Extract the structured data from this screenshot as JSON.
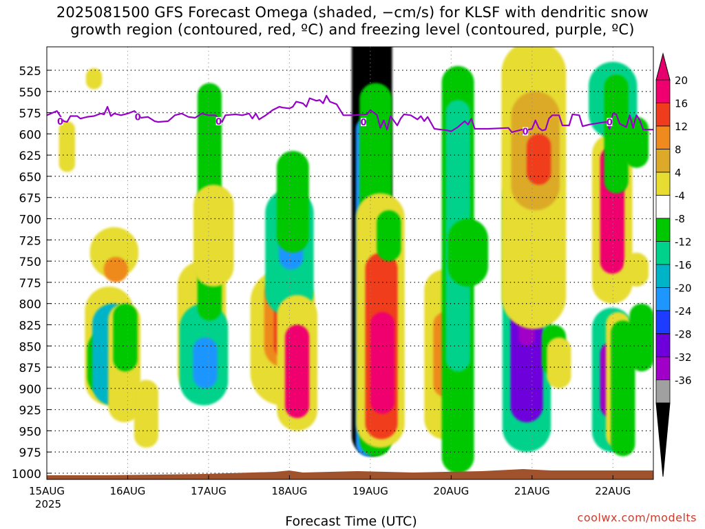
{
  "title_line1": "2025081500 GFS Forecast Omega (shaded, −cm/s) for KLSF with dendritic snow",
  "title_line2": "growth region (contoured, red, ºC) and freezing level (contoured, purple, ºC)",
  "credit": "coolwx.com/modelts",
  "chart_data": {
    "type": "heatmap",
    "title": "2025081500 GFS Forecast Omega (shaded, −cm/s) for KLSF with dendritic snow growth region (contoured, red, ºC) and freezing level (contoured, purple, ºC)",
    "xlabel": "Forecast Time (UTC)",
    "ylabel": "",
    "x_range": [
      "2025-08-15T00",
      "2025-08-22T12"
    ],
    "y_range": [
      1010,
      505
    ],
    "x_ticks": [
      {
        "hour": 0,
        "label": "15AUG",
        "sub": "2025"
      },
      {
        "hour": 24,
        "label": "16AUG"
      },
      {
        "hour": 48,
        "label": "17AUG"
      },
      {
        "hour": 72,
        "label": "18AUG"
      },
      {
        "hour": 96,
        "label": "19AUG"
      },
      {
        "hour": 120,
        "label": "20AUG"
      },
      {
        "hour": 144,
        "label": "21AUG"
      },
      {
        "hour": 168,
        "label": "22AUG"
      }
    ],
    "y_ticks": [
      525,
      550,
      575,
      600,
      625,
      650,
      675,
      700,
      725,
      750,
      775,
      800,
      825,
      850,
      875,
      900,
      925,
      950,
      975,
      1000
    ],
    "grid": true,
    "colorbar": {
      "labels": [
        "20",
        "16",
        "12",
        "8",
        "4",
        "-4",
        "-8",
        "-12",
        "-16",
        "-20",
        "-24",
        "-28",
        "-32",
        "-36"
      ],
      "colors": [
        "#f0006e",
        "#f03c1e",
        "#ee8a1e",
        "#dcaa28",
        "#e6dc32",
        "#ffffff",
        "#00c800",
        "#00d28c",
        "#00b4c8",
        "#1e96ff",
        "#1e3cff",
        "#6e00dc",
        "#a000c8",
        "#a0a0a0"
      ],
      "top_color": "#e6006e",
      "bottom_color": "#000000"
    },
    "freezing_level": {
      "label": "0",
      "color": "#9600c8",
      "points": [
        [
          0,
          578
        ],
        [
          3,
          573
        ],
        [
          5,
          585
        ],
        [
          6,
          586
        ],
        [
          7,
          579
        ],
        [
          9,
          579
        ],
        [
          10,
          582
        ],
        [
          12,
          580
        ],
        [
          14,
          579
        ],
        [
          16,
          576
        ],
        [
          17,
          577
        ],
        [
          18,
          568
        ],
        [
          19,
          579
        ],
        [
          20,
          576
        ],
        [
          22,
          578
        ],
        [
          24,
          576
        ],
        [
          26,
          573
        ],
        [
          28,
          581
        ],
        [
          30,
          580
        ],
        [
          32,
          585
        ],
        [
          33,
          586
        ],
        [
          36,
          585
        ],
        [
          38,
          578
        ],
        [
          40,
          576
        ],
        [
          42,
          580
        ],
        [
          44,
          581
        ],
        [
          46,
          576
        ],
        [
          48,
          578
        ],
        [
          50,
          578
        ],
        [
          52,
          586
        ],
        [
          53,
          578
        ],
        [
          56,
          577
        ],
        [
          58,
          578
        ],
        [
          60,
          576
        ],
        [
          61,
          582
        ],
        [
          62,
          576
        ],
        [
          63,
          583
        ],
        [
          65,
          578
        ],
        [
          67,
          572
        ],
        [
          69,
          568
        ],
        [
          70,
          569
        ],
        [
          72,
          570
        ],
        [
          73,
          568
        ],
        [
          74,
          562
        ],
        [
          76,
          564
        ],
        [
          77,
          568
        ],
        [
          78,
          558
        ],
        [
          80,
          561
        ],
        [
          81,
          560
        ],
        [
          82,
          564
        ],
        [
          83,
          555
        ],
        [
          84,
          562
        ],
        [
          86,
          565
        ],
        [
          88,
          578
        ],
        [
          91,
          578
        ],
        [
          95,
          577
        ],
        [
          96,
          572
        ],
        [
          98,
          578
        ],
        [
          99,
          593
        ],
        [
          100,
          584
        ],
        [
          101,
          595
        ],
        [
          102,
          579
        ],
        [
          104,
          590
        ],
        [
          105,
          582
        ],
        [
          106,
          577
        ],
        [
          108,
          578
        ],
        [
          110,
          583
        ],
        [
          111,
          579
        ],
        [
          112,
          585
        ],
        [
          113,
          580
        ],
        [
          115,
          594
        ],
        [
          117,
          595
        ],
        [
          119,
          596
        ],
        [
          120,
          597
        ],
        [
          122,
          592
        ],
        [
          124,
          585
        ],
        [
          125,
          589
        ],
        [
          126,
          582
        ],
        [
          127,
          594
        ],
        [
          131,
          594
        ],
        [
          137,
          593
        ],
        [
          138,
          598
        ],
        [
          139,
          597
        ],
        [
          142,
          594
        ],
        [
          143,
          595
        ],
        [
          144,
          594
        ],
        [
          145,
          584
        ],
        [
          146,
          593
        ],
        [
          147,
          596
        ],
        [
          148,
          595
        ],
        [
          149,
          582
        ],
        [
          150,
          578
        ],
        [
          152,
          578
        ],
        [
          153,
          590
        ],
        [
          155,
          590
        ],
        [
          156,
          577
        ],
        [
          158,
          578
        ],
        [
          159,
          591
        ],
        [
          160,
          590
        ],
        [
          161,
          589
        ],
        [
          164,
          587
        ],
        [
          166,
          586
        ],
        [
          167,
          594
        ],
        [
          168,
          576
        ],
        [
          169,
          577
        ],
        [
          170,
          588
        ],
        [
          171,
          590
        ],
        [
          172,
          592
        ],
        [
          173,
          578
        ],
        [
          174,
          593
        ],
        [
          175,
          578
        ],
        [
          176,
          584
        ],
        [
          177,
          595
        ],
        [
          180,
          595
        ]
      ]
    },
    "omega_cells": [
      {
        "hour": 18.5,
        "p": 850,
        "dh": 0.6,
        "dp": 140,
        "c": "#e6dc32"
      },
      {
        "hour": 18,
        "p": 870,
        "dh": 0.5,
        "dp": 80,
        "c": "#00c800"
      },
      {
        "hour": 18,
        "p": 880,
        "dh": 0.3,
        "dp": 50,
        "c": "#1e3cff"
      },
      {
        "hour": 19.5,
        "p": 860,
        "dh": 0.5,
        "dp": 120,
        "c": "#00b4c8"
      },
      {
        "hour": 20,
        "p": 740,
        "dh": 0.6,
        "dp": 60,
        "c": "#e6dc32"
      },
      {
        "hour": 20.5,
        "p": 760,
        "dh": 0.3,
        "dp": 30,
        "c": "#ee8a1e"
      },
      {
        "hour": 23,
        "p": 870,
        "dh": 0.4,
        "dp": 140,
        "c": "#e6dc32"
      },
      {
        "hour": 23.3,
        "p": 840,
        "dh": 0.3,
        "dp": 80,
        "c": "#00c800"
      },
      {
        "hour": 46,
        "p": 830,
        "dh": 0.6,
        "dp": 160,
        "c": "#e6dc32"
      },
      {
        "hour": 46.6,
        "p": 860,
        "dh": 0.6,
        "dp": 120,
        "c": "#00d28c"
      },
      {
        "hour": 47,
        "p": 870,
        "dh": 0.3,
        "dp": 60,
        "c": "#1e96ff"
      },
      {
        "hour": 48.3,
        "p": 680,
        "dh": 0.3,
        "dp": 280,
        "c": "#00c800"
      },
      {
        "hour": 48,
        "p": 720,
        "dh": 0.3,
        "dp": 80,
        "c": "#00b4c8"
      },
      {
        "hour": 49.5,
        "p": 720,
        "dh": 0.5,
        "dp": 120,
        "c": "#e6dc32"
      },
      {
        "hour": 70,
        "p": 840,
        "dh": 0.8,
        "dp": 160,
        "c": "#e6dc32"
      },
      {
        "hour": 70.5,
        "p": 820,
        "dh": 0.5,
        "dp": 110,
        "c": "#ee8a1e"
      },
      {
        "hour": 71,
        "p": 830,
        "dh": 0.3,
        "dp": 70,
        "c": "#f03c1e"
      },
      {
        "hour": 72,
        "p": 740,
        "dh": 0.6,
        "dp": 150,
        "c": "#00d28c"
      },
      {
        "hour": 72.5,
        "p": 730,
        "dh": 0.3,
        "dp": 60,
        "c": "#1e96ff"
      },
      {
        "hour": 73,
        "p": 680,
        "dh": 0.4,
        "dp": 120,
        "c": "#00c800"
      },
      {
        "hour": 74.3,
        "p": 870,
        "dh": 0.5,
        "dp": 160,
        "c": "#e6dc32"
      },
      {
        "hour": 74.3,
        "p": 880,
        "dh": 0.3,
        "dp": 110,
        "c": "#f0006e"
      },
      {
        "hour": 96.5,
        "p": 660,
        "dh": 0.5,
        "dp": 640,
        "c": "#000000"
      },
      {
        "hour": 95.3,
        "p": 780,
        "dh": 0.3,
        "dp": 400,
        "c": "#1e96ff"
      },
      {
        "hour": 97.6,
        "p": 760,
        "dh": 0.4,
        "dp": 440,
        "c": "#00c800"
      },
      {
        "hour": 99,
        "p": 820,
        "dh": 0.6,
        "dp": 300,
        "c": "#e6dc32"
      },
      {
        "hour": 99.3,
        "p": 850,
        "dh": 0.4,
        "dp": 220,
        "c": "#f03c1e"
      },
      {
        "hour": 99.6,
        "p": 870,
        "dh": 0.3,
        "dp": 120,
        "c": "#f0006e"
      },
      {
        "hour": 101.5,
        "p": 720,
        "dh": 0.3,
        "dp": 60,
        "c": "#00c800"
      },
      {
        "hour": 118,
        "p": 860,
        "dh": 0.5,
        "dp": 200,
        "c": "#e6dc32"
      },
      {
        "hour": 118.3,
        "p": 860,
        "dh": 0.3,
        "dp": 100,
        "c": "#ee8a1e"
      },
      {
        "hour": 122,
        "p": 760,
        "dh": 0.4,
        "dp": 480,
        "c": "#00c800"
      },
      {
        "hour": 122,
        "p": 720,
        "dh": 0.3,
        "dp": 320,
        "c": "#00d28c"
      },
      {
        "hour": 125,
        "p": 740,
        "dh": 0.5,
        "dp": 80,
        "c": "#00c800"
      },
      {
        "hour": 142.4,
        "p": 810,
        "dh": 0.6,
        "dp": 330,
        "c": "#00d28c"
      },
      {
        "hour": 142.4,
        "p": 810,
        "dh": 0.4,
        "dp": 260,
        "c": "#6e00dc"
      },
      {
        "hour": 142.4,
        "p": 790,
        "dh": 0.2,
        "dp": 120,
        "c": "#a000c8"
      },
      {
        "hour": 144.5,
        "p": 660,
        "dh": 0.8,
        "dp": 340,
        "c": "#e6dc32"
      },
      {
        "hour": 145,
        "p": 620,
        "dh": 0.6,
        "dp": 140,
        "c": "#dcaa28"
      },
      {
        "hour": 146,
        "p": 630,
        "dh": 0.3,
        "dp": 60,
        "c": "#f03c1e"
      },
      {
        "hour": 150.5,
        "p": 855,
        "dh": 0.3,
        "dp": 60,
        "c": "#00c800"
      },
      {
        "hour": 152,
        "p": 870,
        "dh": 0.3,
        "dp": 60,
        "c": "#e6dc32"
      },
      {
        "hour": 167.8,
        "p": 700,
        "dh": 0.5,
        "dp": 200,
        "c": "#e6dc32"
      },
      {
        "hour": 167.8,
        "p": 690,
        "dh": 0.3,
        "dp": 150,
        "c": "#f0006e"
      },
      {
        "hour": 168,
        "p": 560,
        "dh": 0.6,
        "dp": 90,
        "c": "#00d28c"
      },
      {
        "hour": 169,
        "p": 600,
        "dh": 0.3,
        "dp": 140,
        "c": "#00c800"
      },
      {
        "hour": 167.8,
        "p": 890,
        "dh": 0.5,
        "dp": 170,
        "c": "#00d28c"
      },
      {
        "hour": 167.8,
        "p": 890,
        "dh": 0.3,
        "dp": 90,
        "c": "#a000c8"
      },
      {
        "hour": 169.5,
        "p": 890,
        "dh": 0.3,
        "dp": 160,
        "c": "#e6dc32"
      },
      {
        "hour": 171,
        "p": 900,
        "dh": 0.3,
        "dp": 160,
        "c": "#00c800"
      },
      {
        "hour": 175,
        "p": 760,
        "dh": 0.3,
        "dp": 40,
        "c": "#e6dc32"
      },
      {
        "hour": 176.5,
        "p": 840,
        "dh": 0.3,
        "dp": 80,
        "c": "#00c800"
      },
      {
        "hour": 175,
        "p": 610,
        "dh": 0.3,
        "dp": 60,
        "c": "#00c800"
      },
      {
        "hour": 6,
        "p": 615,
        "dh": 0.2,
        "dp": 60,
        "c": "#e6dc32"
      },
      {
        "hour": 14,
        "p": 535,
        "dh": 0.2,
        "dp": 25,
        "c": "#e6dc32"
      },
      {
        "hour": 29.5,
        "p": 930,
        "dh": 0.3,
        "dp": 80,
        "c": "#e6dc32"
      }
    ]
  }
}
